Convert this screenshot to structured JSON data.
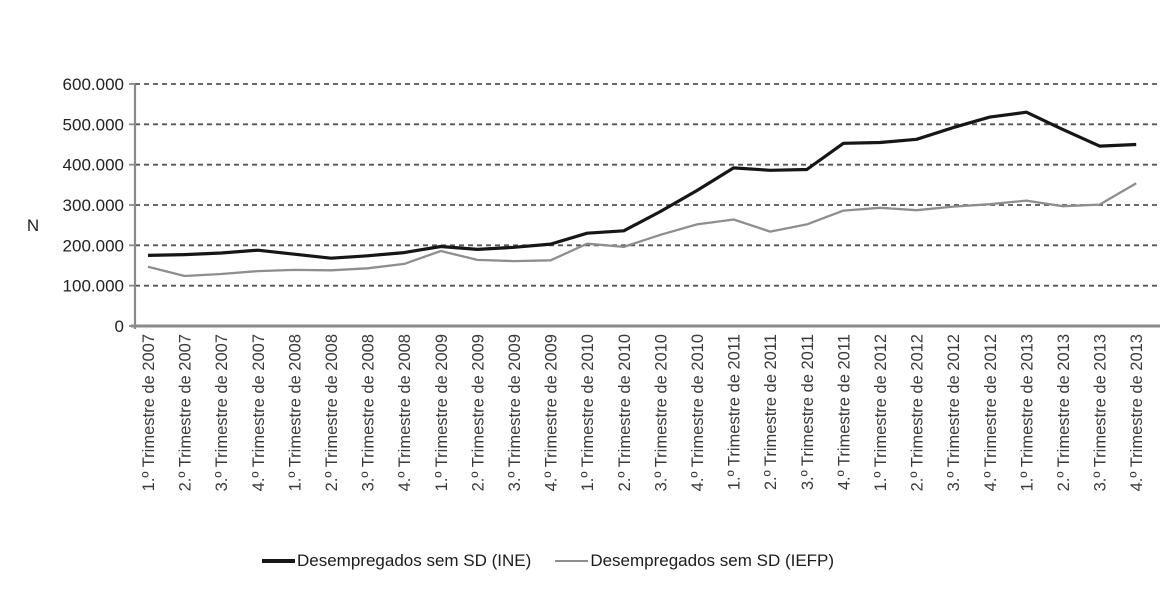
{
  "chart_data": {
    "type": "line",
    "title": "",
    "xlabel": "",
    "ylabel": "N",
    "ylim": [
      0,
      600000
    ],
    "grid": "dashed-horizontal",
    "legend_position": "bottom-center",
    "ytick_values": [
      0,
      100000,
      200000,
      300000,
      400000,
      500000,
      600000
    ],
    "ytick_labels": [
      "0",
      "100.000",
      "200.000",
      "300.000",
      "400.000",
      "500.000",
      "600.000"
    ],
    "categories": [
      "1.º Trimestre de 2007",
      "2.º Trimestre de 2007",
      "3.º Trimestre de 2007",
      "4.º Trimestre de 2007",
      "1.º Trimestre de 2008",
      "2.º Trimestre de 2008",
      "3.º Trimestre de 2008",
      "4.º Trimestre de 2008",
      "1.º Trimestre de 2009",
      "2.º Trimestre de 2009",
      "3.º Trimestre de 2009",
      "4.º Trimestre de 2009",
      "1.º Trimestre de 2010",
      "2.º Trimestre de 2010",
      "3.º Trimestre de 2010",
      "4.º Trimestre de 2010",
      "1.º Trimestre de 2011",
      "2.º Trimestre de 2011",
      "3.º Trimestre de 2011",
      "4.º Trimestre de 2011",
      "1.º Trimestre de 2012",
      "2.º Trimestre de 2012",
      "3.º Trimestre de 2012",
      "4.º Trimestre de 2012",
      "1.º Trimestre de 2013",
      "2.º Trimestre de 2013",
      "3.º Trimestre de 2013",
      "4.º Trimestre de 2013"
    ],
    "series": [
      {
        "name": "Desempregados sem SD (INE)",
        "color": "#161616",
        "stroke_width": 3.2,
        "values": [
          175000,
          177000,
          181000,
          188000,
          178000,
          168000,
          174000,
          182000,
          197000,
          190000,
          195000,
          203000,
          230000,
          236000,
          284000,
          336000,
          392000,
          386000,
          388000,
          453000,
          455000,
          463000,
          492000,
          518000,
          530000,
          487000,
          446000,
          450000
        ]
      },
      {
        "name": "Desempregados sem SD (IEFP)",
        "color": "#8e8e8e",
        "stroke_width": 2.3,
        "values": [
          147000,
          124000,
          129000,
          136000,
          139000,
          138000,
          143000,
          154000,
          186000,
          164000,
          161000,
          163000,
          204000,
          196000,
          226000,
          252000,
          264000,
          234000,
          252000,
          286000,
          293000,
          287000,
          296000,
          302000,
          311000,
          297000,
          301000,
          354000
        ]
      }
    ],
    "style": {
      "grid_color": "#555555",
      "axis_color": "#8a8a8a",
      "ytick_label_color": "#222222",
      "xtick_label_color": "#3a3a3a",
      "ylabel_color": "#222222"
    }
  }
}
